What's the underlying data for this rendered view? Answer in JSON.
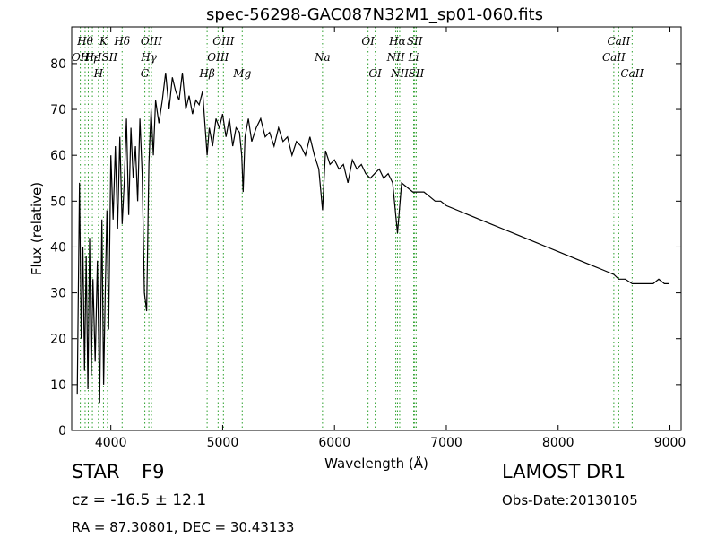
{
  "chart_data": {
    "type": "line",
    "title": "spec-56298-GAC087N32M1_sp01-060.fits",
    "xlabel": "Wavelength (Å)",
    "ylabel": "Flux (relative)",
    "xlim": [
      3650,
      9100
    ],
    "ylim": [
      0,
      88
    ],
    "xticks": [
      4000,
      5000,
      6000,
      7000,
      8000,
      9000
    ],
    "yticks": [
      0,
      10,
      20,
      30,
      40,
      50,
      60,
      70,
      80
    ],
    "grid": false,
    "line_color": "#000000",
    "marker_color": "#2ca02c",
    "series": [
      {
        "x": [
          3700,
          3720,
          3735,
          3750,
          3765,
          3780,
          3795,
          3810,
          3825,
          3840,
          3860,
          3880,
          3900,
          3920,
          3935,
          3950,
          3965,
          3980,
          4000,
          4020,
          4040,
          4060,
          4080,
          4101,
          4120,
          4140,
          4160,
          4180,
          4200,
          4220,
          4240,
          4260,
          4280,
          4300,
          4320,
          4340,
          4360,
          4380,
          4400,
          4430,
          4460,
          4490,
          4520,
          4550,
          4580,
          4610,
          4640,
          4670,
          4700,
          4730,
          4760,
          4790,
          4820,
          4861,
          4880,
          4910,
          4940,
          4970,
          5000,
          5030,
          5060,
          5090,
          5120,
          5150,
          5170,
          5183,
          5200,
          5230,
          5260,
          5300,
          5340,
          5380,
          5420,
          5460,
          5500,
          5540,
          5580,
          5620,
          5660,
          5700,
          5740,
          5780,
          5820,
          5860,
          5893,
          5920,
          5960,
          6000,
          6040,
          6080,
          6120,
          6160,
          6200,
          6240,
          6280,
          6320,
          6360,
          6400,
          6440,
          6480,
          6520,
          6563,
          6600,
          6650,
          6700,
          6750,
          6800,
          6850,
          6900,
          6950,
          7000,
          7100,
          7200,
          7300,
          7400,
          7500,
          7600,
          7700,
          7800,
          7900,
          8000,
          8100,
          8200,
          8300,
          8400,
          8498,
          8542,
          8600,
          8662,
          8700,
          8750,
          8800,
          8850,
          8900,
          8950,
          8990
        ],
        "y": [
          8,
          54,
          20,
          40,
          13,
          38,
          9,
          42,
          12,
          33,
          15,
          37,
          6,
          46,
          10,
          30,
          48,
          22,
          60,
          46,
          62,
          44,
          64,
          45,
          54,
          68,
          47,
          66,
          55,
          62,
          50,
          68,
          56,
          30,
          26,
          58,
          70,
          60,
          72,
          67,
          72,
          78,
          70,
          77,
          74,
          72,
          78,
          70,
          73,
          69,
          72,
          71,
          74,
          60,
          66,
          62,
          68,
          66,
          69,
          64,
          68,
          62,
          66,
          65,
          60,
          52,
          64,
          68,
          63,
          66,
          68,
          64,
          65,
          62,
          66,
          63,
          64,
          60,
          63,
          62,
          60,
          64,
          60,
          57,
          48,
          61,
          58,
          59,
          57,
          58,
          54,
          59,
          57,
          58,
          56,
          55,
          56,
          57,
          55,
          56,
          54,
          43,
          54,
          53,
          52,
          52,
          52,
          51,
          50,
          50,
          49,
          48,
          47,
          46,
          45,
          44,
          43,
          42,
          41,
          40,
          39,
          38,
          37,
          36,
          35,
          34,
          33,
          33,
          32,
          32,
          32,
          32,
          32,
          33,
          32,
          32
        ]
      }
    ],
    "lines": [
      {
        "x": 3727,
        "label": "OII",
        "row": 2
      },
      {
        "x": 3770,
        "label": "Hθ",
        "row": 1
      },
      {
        "x": 3798,
        "label": "Hη",
        "row": 2
      },
      {
        "x": 3835,
        "label": "Hε",
        "row": 2
      },
      {
        "x": 3889,
        "label": "H",
        "row": 3
      },
      {
        "x": 3934,
        "label": "K",
        "row": 1
      },
      {
        "x": 3970,
        "label": "ISII",
        "row": 2
      },
      {
        "x": 4101,
        "label": "Hδ",
        "row": 1
      },
      {
        "x": 4304,
        "label": "G",
        "row": 3
      },
      {
        "x": 4340,
        "label": "Hγ",
        "row": 2
      },
      {
        "x": 4363,
        "label": "OIII",
        "row": 1
      },
      {
        "x": 4861,
        "label": "Hβ",
        "row": 3
      },
      {
        "x": 4959,
        "label": "OIII",
        "row": 2
      },
      {
        "x": 5007,
        "label": "OIII",
        "row": 1
      },
      {
        "x": 5175,
        "label": "Mg",
        "row": 3
      },
      {
        "x": 5893,
        "label": "Na",
        "row": 2
      },
      {
        "x": 6300,
        "label": "OI",
        "row": 1
      },
      {
        "x": 6364,
        "label": "OI",
        "row": 3
      },
      {
        "x": 6548,
        "label": "NII",
        "row": 2
      },
      {
        "x": 6563,
        "label": "Hα",
        "row": 1
      },
      {
        "x": 6583,
        "label": "NII",
        "row": 3
      },
      {
        "x": 6717,
        "label": "SII",
        "row": 1
      },
      {
        "x": 6708,
        "label": "Li",
        "row": 2
      },
      {
        "x": 6731,
        "label": "SII",
        "row": 3
      },
      {
        "x": 8498,
        "label": "CaII",
        "row": 2
      },
      {
        "x": 8542,
        "label": "CaII",
        "row": 1
      },
      {
        "x": 8662,
        "label": "CaII",
        "row": 3
      }
    ]
  },
  "info": {
    "class_label": "STAR",
    "subclass": "F9",
    "survey": "LAMOST DR1",
    "cz": "cz = -16.5 ± 12.1",
    "obs_date": "Obs-Date:20130105",
    "coords": "RA = 87.30801, DEC = 30.43133"
  }
}
